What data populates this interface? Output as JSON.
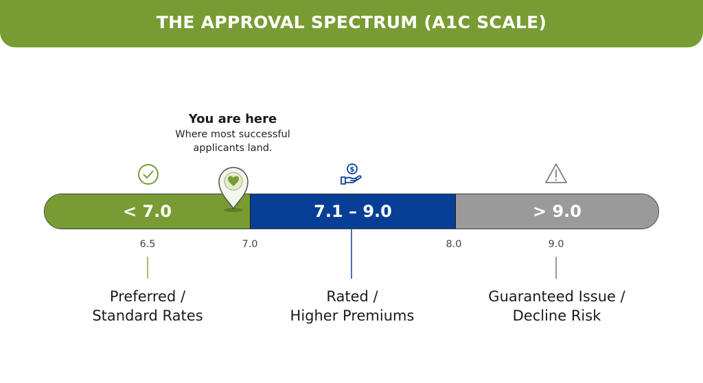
{
  "header": {
    "title": "THE APPROVAL SPECTRUM (A1C SCALE)"
  },
  "callout": {
    "title": "You are here",
    "subtitle_line1": "Where most successful",
    "subtitle_line2": "applicants land."
  },
  "bar": {
    "segments": [
      {
        "label": "< 7.0",
        "color": "#789c33",
        "icon": "check-circle-icon"
      },
      {
        "label": "7.1 – 9.0",
        "color": "#083f96",
        "icon": "hand-coin-icon"
      },
      {
        "label": "> 9.0",
        "color": "#9a9a9a",
        "icon": "warning-triangle-icon"
      }
    ]
  },
  "ticks": [
    "6.5",
    "7.0",
    "8.0",
    "9.0"
  ],
  "zones": [
    {
      "line1": "Preferred /",
      "line2": "Standard Rates"
    },
    {
      "line1": "Rated /",
      "line2": "Higher Premiums"
    },
    {
      "line1": "Guaranteed Issue /",
      "line2": "Decline Risk"
    }
  ],
  "marker": {
    "icon": "location-pin-heart-icon",
    "color": "#789c33"
  }
}
